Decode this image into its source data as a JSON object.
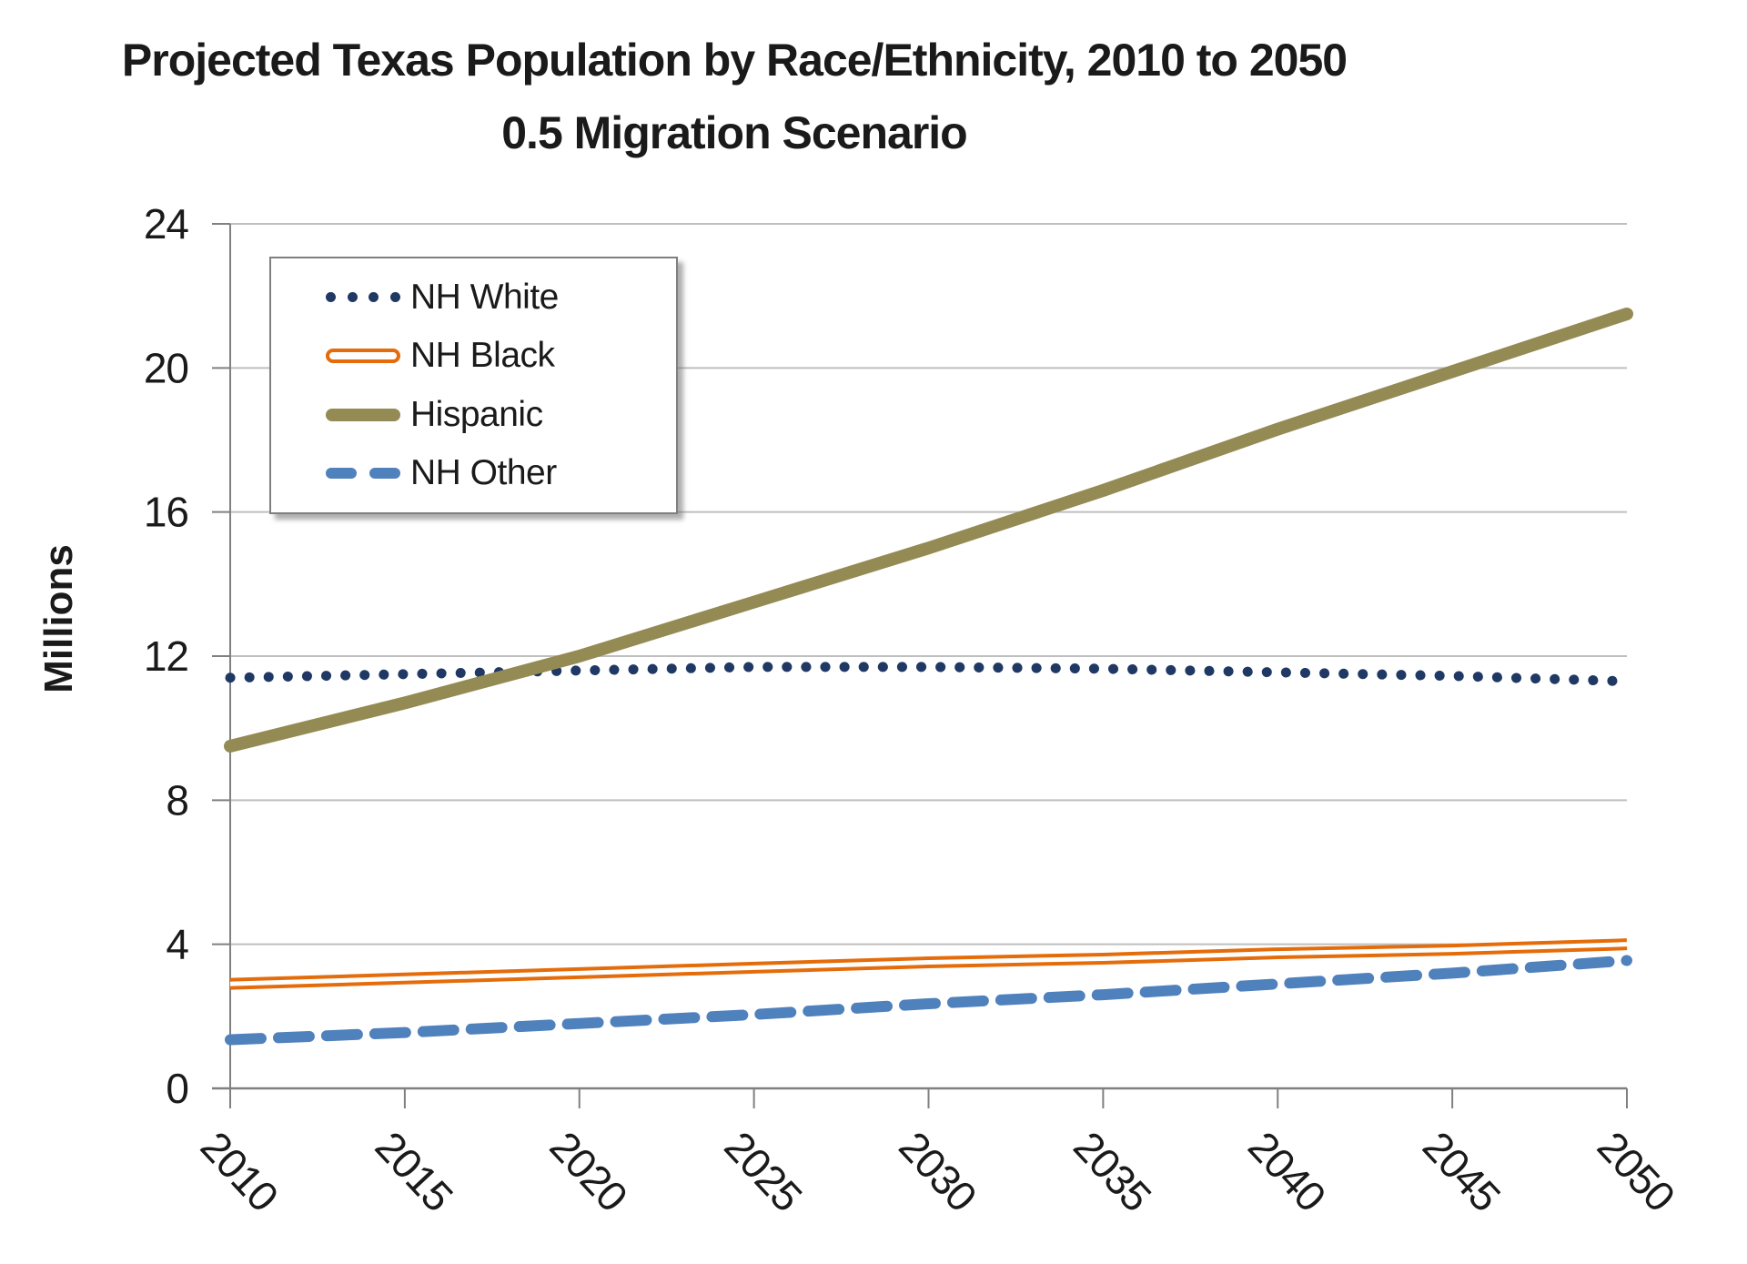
{
  "title": {
    "line1": "Projected Texas Population by Race/Ethnicity, 2010 to 2050",
    "line2": "0.5 Migration Scenario"
  },
  "y_axis": {
    "label": "Millions",
    "ticks": [
      0,
      4,
      8,
      12,
      16,
      20,
      24
    ]
  },
  "x_axis": {
    "ticks": [
      2010,
      2015,
      2020,
      2025,
      2030,
      2035,
      2040,
      2045,
      2050
    ]
  },
  "legend": {
    "items": [
      "NH White",
      "NH Black",
      "Hispanic",
      "NH Other"
    ]
  },
  "colors": {
    "background": "#FFFFFF",
    "grid": "#BFBFBF",
    "axis": "#808080",
    "text": "#1A1A1A",
    "legend_border": "#7F7F7F",
    "nh_white": "#1F3864",
    "nh_black": "#E46C0A",
    "hispanic": "#948A54",
    "nh_other": "#4F81BD"
  },
  "chart_data": {
    "type": "line",
    "title": "Projected Texas Population by Race/Ethnicity, 2010 to 2050",
    "subtitle": "0.5 Migration Scenario",
    "xlabel": "",
    "ylabel": "Millions",
    "xlim": [
      2010,
      2050
    ],
    "ylim": [
      0,
      24
    ],
    "grid": "horizontal-only",
    "legend_position": "top-left-inside",
    "x": [
      2010,
      2015,
      2020,
      2025,
      2030,
      2035,
      2040,
      2045,
      2050
    ],
    "series": [
      {
        "name": "NH White",
        "color": "#1F3864",
        "line_style": "dotted",
        "values": [
          11.4,
          11.5,
          11.6,
          11.7,
          11.7,
          11.65,
          11.55,
          11.45,
          11.3
        ]
      },
      {
        "name": "NH Black",
        "color": "#E46C0A",
        "line_style": "double",
        "values": [
          2.9,
          3.05,
          3.2,
          3.35,
          3.5,
          3.6,
          3.75,
          3.85,
          4.0
        ]
      },
      {
        "name": "Hispanic",
        "color": "#948A54",
        "line_style": "solid",
        "values": [
          9.5,
          10.7,
          12.0,
          13.5,
          15.0,
          16.6,
          18.3,
          19.9,
          21.5
        ]
      },
      {
        "name": "NH Other",
        "color": "#4F81BD",
        "line_style": "dashed",
        "values": [
          1.35,
          1.55,
          1.8,
          2.05,
          2.35,
          2.6,
          2.9,
          3.2,
          3.55
        ]
      }
    ]
  }
}
